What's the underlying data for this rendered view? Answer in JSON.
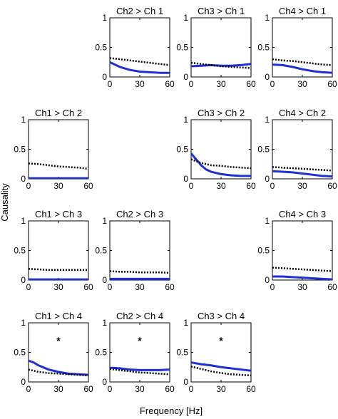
{
  "figure": {
    "ylabel": "Causality",
    "xlabel": "Frequency [Hz]"
  },
  "colors": {
    "solid": "#1f2fd8",
    "dotted": "#000000",
    "axis": "#000000"
  },
  "chart_data": [
    {
      "type": "line",
      "row": 1,
      "col": 2,
      "title": "Ch2 > Ch 1",
      "x": [
        0,
        10,
        20,
        30,
        40,
        50,
        60
      ],
      "xticks": [
        0,
        30,
        60
      ],
      "yticks": [
        0,
        0.5,
        1
      ],
      "xlim": [
        0,
        60
      ],
      "ylim": [
        0,
        1
      ],
      "series": [
        {
          "style": "solid",
          "values": [
            0.25,
            0.17,
            0.12,
            0.09,
            0.08,
            0.07,
            0.07
          ]
        },
        {
          "style": "dotted",
          "values": [
            0.32,
            0.3,
            0.28,
            0.26,
            0.24,
            0.22,
            0.2
          ]
        }
      ]
    },
    {
      "type": "line",
      "row": 1,
      "col": 3,
      "title": "Ch3 > Ch 1",
      "x": [
        0,
        10,
        20,
        30,
        40,
        50,
        60
      ],
      "xticks": [
        0,
        30,
        60
      ],
      "yticks": [
        0,
        0.5,
        1
      ],
      "xlim": [
        0,
        60
      ],
      "ylim": [
        0,
        1
      ],
      "series": [
        {
          "style": "solid",
          "values": [
            0.18,
            0.19,
            0.2,
            0.19,
            0.19,
            0.2,
            0.22
          ]
        },
        {
          "style": "dotted",
          "values": [
            0.24,
            0.22,
            0.2,
            0.18,
            0.17,
            0.16,
            0.15
          ]
        }
      ]
    },
    {
      "type": "line",
      "row": 1,
      "col": 4,
      "title": "Ch4 > Ch 1",
      "x": [
        0,
        10,
        20,
        30,
        40,
        50,
        60
      ],
      "xticks": [
        0,
        30,
        60
      ],
      "yticks": [
        0,
        0.5,
        1
      ],
      "xlim": [
        0,
        60
      ],
      "ylim": [
        0,
        1
      ],
      "series": [
        {
          "style": "solid",
          "values": [
            0.21,
            0.2,
            0.17,
            0.13,
            0.1,
            0.08,
            0.07
          ]
        },
        {
          "style": "dotted",
          "values": [
            0.3,
            0.28,
            0.27,
            0.25,
            0.23,
            0.21,
            0.2
          ]
        }
      ]
    },
    {
      "type": "line",
      "row": 2,
      "col": 1,
      "title": "Ch1 > Ch 2",
      "x": [
        0,
        10,
        20,
        30,
        40,
        50,
        60
      ],
      "xticks": [
        0,
        30,
        60
      ],
      "yticks": [
        0,
        0.5,
        1
      ],
      "xlim": [
        0,
        60
      ],
      "ylim": [
        0,
        1
      ],
      "series": [
        {
          "style": "solid",
          "values": [
            0.01,
            0.01,
            0.01,
            0.01,
            0.01,
            0.01,
            0.01
          ]
        },
        {
          "style": "dotted",
          "values": [
            0.26,
            0.25,
            0.23,
            0.21,
            0.2,
            0.19,
            0.17
          ]
        }
      ]
    },
    {
      "type": "line",
      "row": 2,
      "col": 3,
      "title": "Ch3 > Ch 2",
      "x": [
        0,
        5,
        10,
        15,
        20,
        30,
        40,
        50,
        60
      ],
      "xticks": [
        0,
        30,
        60
      ],
      "yticks": [
        0,
        0.5,
        1
      ],
      "xlim": [
        0,
        60
      ],
      "ylim": [
        0,
        1
      ],
      "series": [
        {
          "style": "solid",
          "values": [
            0.43,
            0.33,
            0.23,
            0.16,
            0.12,
            0.08,
            0.06,
            0.05,
            0.05
          ]
        },
        {
          "style": "dotted",
          "values": [
            0.33,
            0.3,
            0.27,
            0.25,
            0.23,
            0.22,
            0.2,
            0.19,
            0.18
          ]
        }
      ]
    },
    {
      "type": "line",
      "row": 2,
      "col": 4,
      "title": "Ch4 > Ch 2",
      "x": [
        0,
        10,
        20,
        30,
        40,
        50,
        60
      ],
      "xticks": [
        0,
        30,
        60
      ],
      "yticks": [
        0,
        0.5,
        1
      ],
      "xlim": [
        0,
        60
      ],
      "ylim": [
        0,
        1
      ],
      "series": [
        {
          "style": "solid",
          "values": [
            0.13,
            0.12,
            0.11,
            0.09,
            0.07,
            0.05,
            0.04
          ]
        },
        {
          "style": "dotted",
          "values": [
            0.2,
            0.19,
            0.18,
            0.17,
            0.16,
            0.15,
            0.14
          ]
        }
      ]
    },
    {
      "type": "line",
      "row": 3,
      "col": 1,
      "title": "Ch1 > Ch 3",
      "x": [
        0,
        10,
        20,
        30,
        40,
        50,
        60
      ],
      "xticks": [
        0,
        30,
        60
      ],
      "yticks": [
        0,
        0.5,
        1
      ],
      "xlim": [
        0,
        60
      ],
      "ylim": [
        0,
        1
      ],
      "series": [
        {
          "style": "solid",
          "values": [
            0.01,
            0.01,
            0.01,
            0.01,
            0.01,
            0.01,
            0.01
          ]
        },
        {
          "style": "dotted",
          "values": [
            0.19,
            0.18,
            0.17,
            0.17,
            0.17,
            0.17,
            0.17
          ]
        }
      ]
    },
    {
      "type": "line",
      "row": 3,
      "col": 2,
      "title": "Ch2 > Ch 3",
      "x": [
        0,
        10,
        20,
        30,
        40,
        50,
        60
      ],
      "xticks": [
        0,
        30,
        60
      ],
      "yticks": [
        0,
        0.5,
        1
      ],
      "xlim": [
        0,
        60
      ],
      "ylim": [
        0,
        1
      ],
      "series": [
        {
          "style": "solid",
          "values": [
            0.02,
            0.02,
            0.02,
            0.02,
            0.02,
            0.02,
            0.02
          ]
        },
        {
          "style": "dotted",
          "values": [
            0.15,
            0.14,
            0.14,
            0.13,
            0.13,
            0.13,
            0.12
          ]
        }
      ]
    },
    {
      "type": "line",
      "row": 3,
      "col": 4,
      "title": "Ch4 > Ch 3",
      "x": [
        0,
        10,
        20,
        30,
        40,
        50,
        60
      ],
      "xticks": [
        0,
        30,
        60
      ],
      "yticks": [
        0,
        0.5,
        1
      ],
      "xlim": [
        0,
        60
      ],
      "ylim": [
        0,
        1
      ],
      "series": [
        {
          "style": "solid",
          "values": [
            0.06,
            0.06,
            0.05,
            0.04,
            0.03,
            0.02,
            0.01
          ]
        },
        {
          "style": "dotted",
          "values": [
            0.21,
            0.2,
            0.19,
            0.18,
            0.17,
            0.16,
            0.15
          ]
        }
      ]
    },
    {
      "type": "line",
      "row": 4,
      "col": 1,
      "title": "Ch1 > Ch 4",
      "annotation": "*",
      "x": [
        0,
        5,
        10,
        20,
        30,
        40,
        50,
        60
      ],
      "xticks": [
        0,
        30,
        60
      ],
      "yticks": [
        0,
        0.5,
        1
      ],
      "xlim": [
        0,
        60
      ],
      "ylim": [
        0,
        1
      ],
      "series": [
        {
          "style": "solid",
          "values": [
            0.36,
            0.33,
            0.28,
            0.21,
            0.17,
            0.14,
            0.13,
            0.12
          ]
        },
        {
          "style": "dotted",
          "values": [
            0.21,
            0.19,
            0.17,
            0.15,
            0.14,
            0.13,
            0.12,
            0.11
          ]
        }
      ]
    },
    {
      "type": "line",
      "row": 4,
      "col": 2,
      "title": "Ch2 > Ch 4",
      "annotation": "*",
      "x": [
        0,
        10,
        20,
        30,
        40,
        50,
        60
      ],
      "xticks": [
        0,
        30,
        60
      ],
      "yticks": [
        0,
        0.5,
        1
      ],
      "xlim": [
        0,
        60
      ],
      "ylim": [
        0,
        1
      ],
      "series": [
        {
          "style": "solid",
          "values": [
            0.24,
            0.23,
            0.21,
            0.2,
            0.2,
            0.2,
            0.21
          ]
        },
        {
          "style": "dotted",
          "values": [
            0.22,
            0.2,
            0.18,
            0.16,
            0.15,
            0.14,
            0.13
          ]
        }
      ]
    },
    {
      "type": "line",
      "row": 4,
      "col": 3,
      "title": "Ch3 > Ch 4",
      "annotation": "*",
      "x": [
        0,
        10,
        20,
        30,
        40,
        50,
        60
      ],
      "xticks": [
        0,
        30,
        60
      ],
      "yticks": [
        0,
        0.5,
        1
      ],
      "xlim": [
        0,
        60
      ],
      "ylim": [
        0,
        1
      ],
      "series": [
        {
          "style": "solid",
          "values": [
            0.33,
            0.3,
            0.28,
            0.25,
            0.23,
            0.21,
            0.19
          ]
        },
        {
          "style": "dotted",
          "values": [
            0.26,
            0.22,
            0.18,
            0.15,
            0.13,
            0.12,
            0.11
          ]
        }
      ]
    }
  ]
}
